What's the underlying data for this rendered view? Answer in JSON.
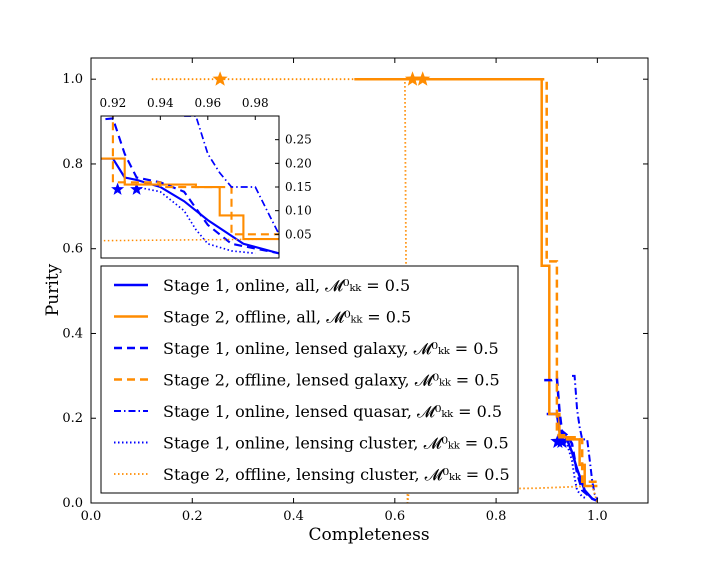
{
  "chart_data": {
    "type": "line",
    "xlabel": "Completeness",
    "ylabel": "Purity",
    "xlim": [
      0.0,
      1.1
    ],
    "ylim": [
      0.0,
      1.05
    ],
    "xticks": [
      "0.0",
      "0.2",
      "0.4",
      "0.6",
      "0.8",
      "1.0"
    ],
    "yticks": [
      "0.0",
      "0.2",
      "0.4",
      "0.6",
      "0.8",
      "1.0"
    ],
    "legend_placement": "lower-left",
    "colors": {
      "blue": "#0000ff",
      "orange": "#ff8c00"
    },
    "series": [
      {
        "name": "Stage 1, online, all, 𝓜⁰ₖₖ = 0.5",
        "legend_prefix": "Stage 1, online, all, ",
        "color": "#0000ff",
        "style": "solid",
        "width": 2.5,
        "points": [
          [
            0.9,
            0.21
          ],
          [
            0.92,
            0.21
          ],
          [
            0.925,
            0.17
          ],
          [
            0.93,
            0.165
          ],
          [
            0.94,
            0.15
          ],
          [
            0.95,
            0.12
          ],
          [
            0.96,
            0.08
          ],
          [
            0.975,
            0.03
          ],
          [
            0.99,
            0.01
          ],
          [
            1.0,
            0.005
          ]
        ],
        "stars": [
          [
            0.922,
            0.145
          ],
          [
            0.93,
            0.145
          ]
        ]
      },
      {
        "name": "Stage 2, offline, all, 𝓜⁰ₖₖ = 0.5",
        "legend_prefix": "Stage 2, offline, all, ",
        "color": "#ff8c00",
        "style": "solid",
        "width": 2.5,
        "points": [
          [
            0.525,
            1.0
          ],
          [
            0.89,
            1.0
          ],
          [
            0.89,
            0.56
          ],
          [
            0.905,
            0.56
          ],
          [
            0.905,
            0.21
          ],
          [
            0.925,
            0.21
          ],
          [
            0.925,
            0.155
          ],
          [
            0.955,
            0.155
          ],
          [
            0.955,
            0.15
          ],
          [
            0.965,
            0.15
          ],
          [
            0.965,
            0.09
          ],
          [
            0.975,
            0.09
          ],
          [
            0.975,
            0.04
          ],
          [
            1.0,
            0.04
          ]
        ],
        "stars": [
          [
            0.635,
            1.0
          ],
          [
            0.655,
            1.0
          ]
        ]
      },
      {
        "name": "Stage 1, online, lensed galaxy, 𝓜⁰ₖₖ = 0.5",
        "legend_prefix": "Stage 1, online, lensed galaxy, ",
        "color": "#0000ff",
        "style": "dashed",
        "width": 2.5,
        "points": [
          [
            0.895,
            0.29
          ],
          [
            0.91,
            0.29
          ],
          [
            0.92,
            0.295
          ],
          [
            0.925,
            0.22
          ],
          [
            0.93,
            0.17
          ],
          [
            0.94,
            0.16
          ],
          [
            0.95,
            0.14
          ],
          [
            0.96,
            0.07
          ],
          [
            0.97,
            0.03
          ],
          [
            0.99,
            0.01
          ]
        ],
        "stars": []
      },
      {
        "name": "Stage 2, offline, lensed galaxy, 𝓜⁰ₖₖ = 0.5",
        "legend_prefix": "Stage 2, offline, lensed galaxy, ",
        "color": "#ff8c00",
        "style": "dashed",
        "width": 2.5,
        "points": [
          [
            0.52,
            1.0
          ],
          [
            0.9,
            1.0
          ],
          [
            0.9,
            0.57
          ],
          [
            0.92,
            0.57
          ],
          [
            0.92,
            0.16
          ],
          [
            0.94,
            0.16
          ],
          [
            0.94,
            0.15
          ],
          [
            0.97,
            0.15
          ],
          [
            0.97,
            0.05
          ],
          [
            1.0,
            0.05
          ]
        ],
        "stars": []
      },
      {
        "name": "Stage 1, online, lensed quasar, 𝓜⁰ₖₖ = 0.5",
        "legend_prefix": "Stage 1, online, lensed quasar, ",
        "color": "#0000ff",
        "style": "dashdot",
        "width": 2.0,
        "points": [
          [
            0.95,
            0.3
          ],
          [
            0.955,
            0.3
          ],
          [
            0.96,
            0.22
          ],
          [
            0.965,
            0.18
          ],
          [
            0.97,
            0.15
          ],
          [
            0.98,
            0.15
          ],
          [
            0.985,
            0.1
          ],
          [
            0.99,
            0.05
          ],
          [
            0.995,
            0.02
          ],
          [
            1.0,
            0.01
          ]
        ],
        "stars": []
      },
      {
        "name": "Stage 1, online, lensing cluster, 𝓜⁰ₖₖ = 0.5",
        "legend_prefix": "Stage 1, online, lensing cluster, ",
        "color": "#0000ff",
        "style": "dotted",
        "width": 2.0,
        "points": [
          [
            0.93,
            0.15
          ],
          [
            0.94,
            0.14
          ],
          [
            0.95,
            0.1
          ],
          [
            0.955,
            0.06
          ],
          [
            0.96,
            0.03
          ],
          [
            0.97,
            0.015
          ],
          [
            0.98,
            0.01
          ]
        ],
        "stars": []
      },
      {
        "name": "Stage 2, offline, lensing cluster, 𝓜⁰ₖₖ = 0.5",
        "legend_prefix": "Stage 2, offline, lensing cluster, ",
        "color": "#ff8c00",
        "style": "dotted",
        "width": 1.8,
        "points": [
          [
            0.12,
            1.0
          ],
          [
            0.62,
            1.0
          ],
          [
            0.625,
            0.0
          ],
          [
            0.628,
            0.03
          ],
          [
            0.88,
            0.035
          ],
          [
            0.99,
            0.04
          ],
          [
            1.0,
            0.0
          ]
        ],
        "stars": [
          [
            0.255,
            1.0
          ]
        ]
      }
    ],
    "inset": {
      "xlim": [
        0.915,
        0.99
      ],
      "ylim": [
        0.0,
        0.3
      ],
      "xticks": [
        "0.92",
        "0.94",
        "0.96",
        "0.98"
      ],
      "yticks": [
        "0.05",
        "0.10",
        "0.15",
        "0.20",
        "0.25"
      ]
    },
    "legend_math": "𝓜⁰ₖₖ = 0.5"
  }
}
